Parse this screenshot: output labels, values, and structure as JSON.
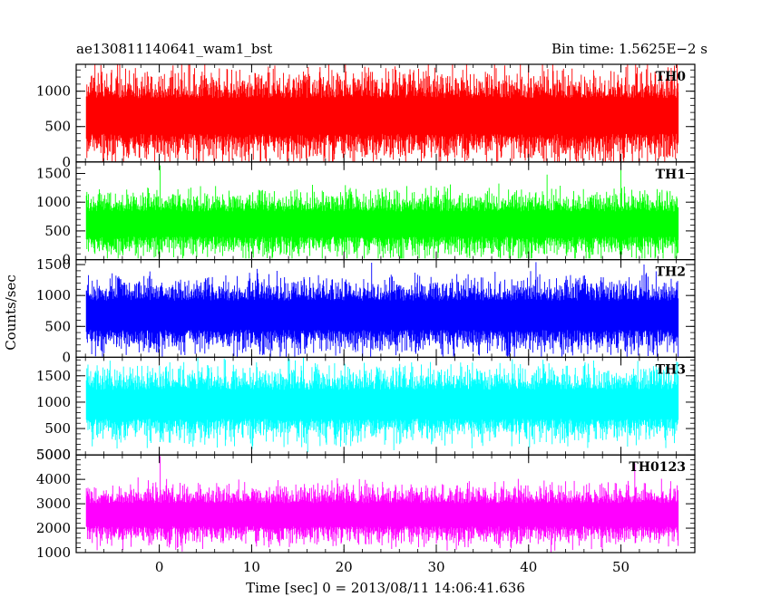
{
  "header": {
    "left_title": "ae130811140641_wam1_bst",
    "right_title": "Bin time: 1.5625E−2 s"
  },
  "axes": {
    "ylabel": "Counts/sec",
    "xlabel": "Time [sec] 0 = 2013/08/11 14:06:41.636"
  },
  "chart_data": {
    "type": "line",
    "shared_x": {
      "range": [
        -9,
        58
      ],
      "data_range": [
        -7.9,
        56.2
      ],
      "ticks": [
        0,
        10,
        20,
        30,
        40,
        50
      ],
      "tick_labels": [
        "0",
        "10",
        "20",
        "30",
        "40",
        "50"
      ]
    },
    "panels": [
      {
        "label": "TH0",
        "color": "#ff0000",
        "ylim": [
          0,
          1380
        ],
        "yticks": [
          0,
          500,
          1000
        ],
        "ytick_labels": [
          "0",
          "500",
          "1000"
        ],
        "baseline": 650,
        "noise": 230,
        "min": 5,
        "max": 1380,
        "spikes": []
      },
      {
        "label": "TH1",
        "color": "#00ff00",
        "ylim": [
          0,
          1700
        ],
        "yticks": [
          0,
          500,
          1000,
          1500
        ],
        "ytick_labels": [
          "0",
          "500",
          "1000",
          "1500"
        ],
        "baseline": 620,
        "noise": 200,
        "min": 20,
        "max": 1600,
        "spikes": [
          {
            "x": 0.1,
            "y": 1640
          },
          {
            "x": 42.0,
            "y": 1480
          },
          {
            "x": 50.0,
            "y": 1560
          }
        ]
      },
      {
        "label": "TH2",
        "color": "#0000ff",
        "ylim": [
          0,
          1580
        ],
        "yticks": [
          0,
          500,
          1000,
          1500
        ],
        "ytick_labels": [
          "0",
          "500",
          "1000",
          "1500"
        ],
        "baseline": 680,
        "noise": 215,
        "min": 10,
        "max": 1550,
        "spikes": [
          {
            "x": 23.0,
            "y": 1530
          },
          {
            "x": 40.8,
            "y": 1540
          },
          {
            "x": 52.5,
            "y": 1500
          }
        ]
      },
      {
        "label": "TH3",
        "color": "#00ffff",
        "ylim": [
          0,
          1850
        ],
        "yticks": [
          500,
          1000,
          1500
        ],
        "ytick_labels": [
          "500",
          "1000",
          "1500"
        ],
        "tick_label_extra": "5000",
        "baseline": 960,
        "noise": 250,
        "min": 0,
        "max": 1850,
        "spikes": []
      },
      {
        "label": "TH0123",
        "color": "#ff00ff",
        "ylim": [
          1000,
          5000
        ],
        "yticks": [
          1000,
          2000,
          3000,
          4000,
          5000
        ],
        "ytick_labels": [
          "1000",
          "2000",
          "3000",
          "4000",
          "5000"
        ],
        "baseline": 2550,
        "noise": 430,
        "min": 1000,
        "max": 4900,
        "spikes": [
          {
            "x": 0.1,
            "y": 4950
          },
          {
            "x": 51.5,
            "y": 4650
          }
        ]
      }
    ]
  }
}
